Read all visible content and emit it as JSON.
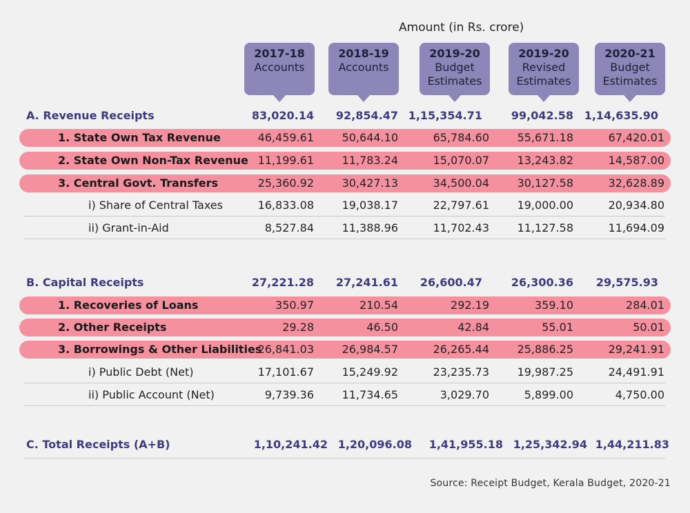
{
  "header": {
    "amount_title": "Amount (in Rs. crore)"
  },
  "columns": [
    {
      "year": "2017-18",
      "line1": "Accounts",
      "line2": ""
    },
    {
      "year": "2018-19",
      "line1": "Accounts",
      "line2": ""
    },
    {
      "year": "2019-20",
      "line1": "Budget",
      "line2": "Estimates"
    },
    {
      "year": "2019-20",
      "line1": "Revised",
      "line2": "Estimates"
    },
    {
      "year": "2020-21",
      "line1": "Budget",
      "line2": "Estimates"
    }
  ],
  "rows": [
    {
      "label": "A. Revenue Receipts",
      "values": [
        "83,020.14",
        "92,854.47",
        "1,15,354.71",
        "99,042.58",
        "1,14,635.90"
      ]
    },
    {
      "label": "1. State Own Tax Revenue",
      "values": [
        "46,459.61",
        "50,644.10",
        "65,784.60",
        "55,671.18",
        "67,420.01"
      ]
    },
    {
      "label": "2. State Own Non-Tax Revenue",
      "values": [
        "11,199.61",
        "11,783.24",
        "15,070.07",
        "13,243.82",
        "14,587.00"
      ]
    },
    {
      "label": "3. Central Govt. Transfers",
      "values": [
        "25,360.92",
        "30,427.13",
        "34,500.04",
        "30,127.58",
        "32,628.89"
      ]
    },
    {
      "label": "i) Share of Central Taxes",
      "values": [
        "16,833.08",
        "19,038.17",
        "22,797.61",
        "19,000.00",
        "20,934.80"
      ]
    },
    {
      "label": "ii) Grant-in-Aid",
      "values": [
        "8,527.84",
        "11,388.96",
        "11,702.43",
        "11,127.58",
        "11,694.09"
      ]
    },
    {
      "label": "B. Capital Receipts",
      "values": [
        "27,221.28",
        "27,241.61",
        "26,600.47",
        "26,300.36",
        "29,575.93"
      ]
    },
    {
      "label": "1. Recoveries of Loans",
      "values": [
        "350.97",
        "210.54",
        "292.19",
        "359.10",
        "284.01"
      ]
    },
    {
      "label": "2. Other Receipts",
      "values": [
        "29.28",
        "46.50",
        "42.84",
        "55.01",
        "50.01"
      ]
    },
    {
      "label": "3. Borrowings & Other Liabilities",
      "values": [
        "26,841.03",
        "26,984.57",
        "26,265.44",
        "25,886.25",
        "29,241.91"
      ]
    },
    {
      "label": "i) Public Debt (Net)",
      "values": [
        "17,101.67",
        "15,249.92",
        "23,235.73",
        "19,987.25",
        "24,491.91"
      ]
    },
    {
      "label": "ii) Public Account (Net)",
      "values": [
        "9,739.36",
        "11,734.65",
        "3,029.70",
        "5,899.00",
        "4,750.00"
      ]
    },
    {
      "label": "C. Total Receipts (A+B)",
      "values": [
        "1,10,241.42",
        "1,20,096.08",
        "1,41,955.18",
        "1,25,342.94",
        "1,44,211.83"
      ]
    }
  ],
  "footer": {
    "source": "Source: Receipt Budget, Kerala Budget, 2020-21"
  },
  "colors": {
    "header_bubble": "#8c87b8",
    "highlight_row": "#f5909e",
    "section_text": "#3e3a80"
  }
}
